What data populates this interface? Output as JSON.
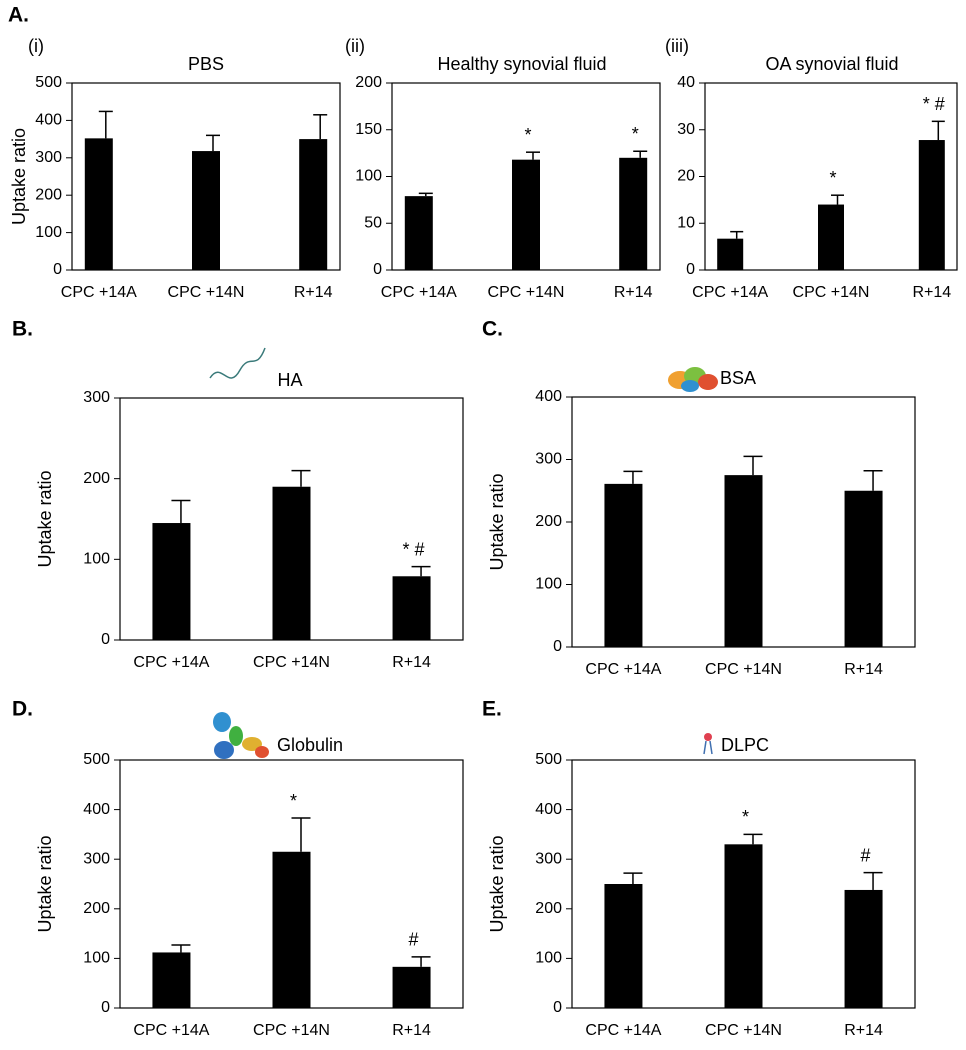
{
  "group_label": "A.",
  "chart_data": [
    {
      "type": "bar",
      "panel_label": "(i)",
      "title": "PBS",
      "y_label": "Uptake ratio",
      "categories": [
        "CPC +14A",
        "CPC +14N",
        "R+14"
      ],
      "series": [
        {
          "color": "#000000",
          "values": [
            352,
            318,
            350
          ],
          "errors": [
            72,
            42,
            65
          ]
        }
      ],
      "ylim": [
        0,
        500
      ],
      "yticks": [
        0,
        100,
        200,
        300,
        400,
        500
      ]
    },
    {
      "type": "bar",
      "panel_label": "(ii)",
      "title": "Healthy synovial fluid",
      "categories": [
        "CPC +14A",
        "CPC +14N",
        "R+14"
      ],
      "series": [
        {
          "color": "#000000",
          "values": [
            79,
            118,
            120
          ],
          "errors": [
            3,
            8,
            7
          ]
        }
      ],
      "annotations": [
        null,
        "*",
        "*"
      ],
      "ylim": [
        0,
        200
      ],
      "yticks": [
        0,
        50,
        100,
        150,
        200
      ]
    },
    {
      "type": "bar",
      "panel_label": "(iii)",
      "title": "OA synovial fluid",
      "categories": [
        "CPC +14A",
        "CPC +14N",
        "R+14"
      ],
      "series": [
        {
          "color": "#000000",
          "values": [
            6.7,
            14,
            27.8
          ],
          "errors": [
            1.5,
            2,
            4
          ]
        }
      ],
      "annotations": [
        null,
        "*",
        "* #"
      ],
      "ylim": [
        0,
        40
      ],
      "yticks": [
        0,
        10,
        20,
        30,
        40
      ]
    },
    {
      "type": "bar",
      "panel_label": "B.",
      "title": "HA",
      "y_label": "Uptake ratio",
      "categories": [
        "CPC +14A",
        "CPC +14N",
        "R+14"
      ],
      "series": [
        {
          "color": "#000000",
          "values": [
            145,
            190,
            79
          ],
          "errors": [
            28,
            20,
            12
          ]
        }
      ],
      "annotations": [
        null,
        null,
        "* #"
      ],
      "ylim": [
        0,
        300
      ],
      "yticks": [
        0,
        100,
        200,
        300
      ]
    },
    {
      "type": "bar",
      "panel_label": "C.",
      "title": "BSA",
      "y_label": "Uptake ratio",
      "categories": [
        "CPC +14A",
        "CPC +14N",
        "R+14"
      ],
      "series": [
        {
          "color": "#000000",
          "values": [
            261,
            275,
            250
          ],
          "errors": [
            20,
            30,
            32
          ]
        }
      ],
      "ylim": [
        0,
        400
      ],
      "yticks": [
        0,
        100,
        200,
        300,
        400
      ]
    },
    {
      "type": "bar",
      "panel_label": "D.",
      "title": "Globulin",
      "y_label": "Uptake ratio",
      "categories": [
        "CPC +14A",
        "CPC +14N",
        "R+14"
      ],
      "series": [
        {
          "color": "#000000",
          "values": [
            112,
            315,
            83
          ],
          "errors": [
            15,
            68,
            20
          ]
        }
      ],
      "annotations": [
        null,
        "*",
        "#"
      ],
      "ylim": [
        0,
        500
      ],
      "yticks": [
        0,
        100,
        200,
        300,
        400,
        500
      ]
    },
    {
      "type": "bar",
      "panel_label": "E.",
      "title": "DLPC",
      "y_label": "Uptake ratio",
      "categories": [
        "CPC +14A",
        "CPC +14N",
        "R+14"
      ],
      "series": [
        {
          "color": "#000000",
          "values": [
            250,
            330,
            238
          ],
          "errors": [
            22,
            20,
            35
          ]
        }
      ],
      "annotations": [
        null,
        "*",
        "#"
      ],
      "ylim": [
        0,
        500
      ],
      "yticks": [
        0,
        100,
        200,
        300,
        400,
        500
      ]
    }
  ]
}
